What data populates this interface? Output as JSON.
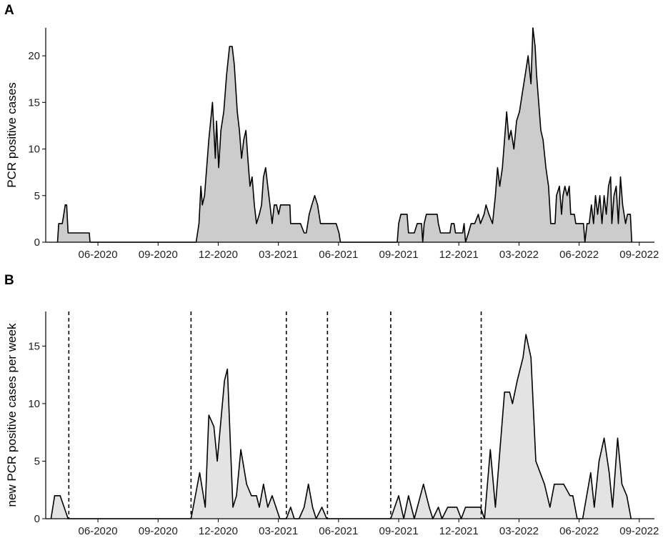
{
  "chart_data": [
    {
      "type": "area",
      "label": "A",
      "y_label": "PCR positive cases",
      "fill": "#cccccc",
      "color": "#000000",
      "xlim": [
        2020.2,
        2022.73
      ],
      "ylim": [
        0,
        23
      ],
      "yticks": [
        0,
        5,
        10,
        15,
        20
      ],
      "xticks": [
        {
          "value": 2020.417,
          "label": "06-2020"
        },
        {
          "value": 2020.667,
          "label": "09-2020"
        },
        {
          "value": 2020.917,
          "label": "12-2020"
        },
        {
          "value": 2021.167,
          "label": "03-2021"
        },
        {
          "value": 2021.417,
          "label": "06-2021"
        },
        {
          "value": 2021.667,
          "label": "09-2021"
        },
        {
          "value": 2021.917,
          "label": "12-2021"
        },
        {
          "value": 2022.167,
          "label": "03-2022"
        },
        {
          "value": 2022.417,
          "label": "06-2022"
        },
        {
          "value": 2022.667,
          "label": "09-2022"
        }
      ],
      "x": [
        2020.249,
        2020.254,
        2020.269,
        2020.275,
        2020.281,
        2020.287,
        2020.293,
        2020.381,
        2020.384,
        2020.825,
        2020.837,
        2020.845,
        2020.851,
        2020.86,
        2020.869,
        2020.878,
        2020.893,
        2020.899,
        2020.905,
        2020.91,
        2020.919,
        2020.928,
        2020.94,
        2020.952,
        2020.964,
        2020.975,
        2020.984,
        2020.996,
        2021.005,
        2021.014,
        2021.023,
        2021.032,
        2021.04,
        2021.049,
        2021.058,
        2021.067,
        2021.076,
        2021.088,
        2021.097,
        2021.105,
        2021.114,
        2021.123,
        2021.132,
        2021.141,
        2021.15,
        2021.159,
        2021.168,
        2021.176,
        2021.215,
        2021.218,
        2021.259,
        2021.274,
        2021.283,
        2021.295,
        2021.306,
        2021.318,
        2021.33,
        2021.342,
        2021.363,
        2021.407,
        2021.419,
        2021.425,
        2021.661,
        2021.667,
        2021.676,
        2021.702,
        2021.708,
        2021.732,
        2021.744,
        2021.762,
        2021.767,
        2021.773,
        2021.782,
        2021.827,
        2021.832,
        2021.841,
        2021.88,
        2021.886,
        2021.897,
        2021.903,
        2021.933,
        2021.939,
        2021.945,
        2021.957,
        2021.968,
        2021.983,
        2021.998,
        2022.007,
        2022.022,
        2022.03,
        2022.042,
        2022.057,
        2022.069,
        2022.078,
        2022.087,
        2022.098,
        2022.107,
        2022.116,
        2022.125,
        2022.134,
        2022.146,
        2022.157,
        2022.169,
        2022.181,
        2022.193,
        2022.205,
        2022.217,
        2022.225,
        2022.234,
        2022.24,
        2022.249,
        2022.258,
        2022.267,
        2022.279,
        2022.29,
        2022.299,
        2022.317,
        2022.323,
        2022.335,
        2022.344,
        2022.35,
        2022.358,
        2022.367,
        2022.376,
        2022.382,
        2022.397,
        2022.403,
        2022.435,
        2022.441,
        2022.45,
        2022.459,
        2022.468,
        2022.477,
        2022.485,
        2022.494,
        2022.503,
        2022.512,
        2022.521,
        2022.53,
        2022.539,
        2022.548,
        2022.553,
        2022.562,
        2022.571,
        2022.58,
        2022.589,
        2022.598,
        2022.61,
        2022.618,
        2022.63,
        2022.636
      ],
      "values": [
        0,
        2,
        2,
        3,
        4,
        4,
        1,
        1,
        0,
        0,
        2,
        6,
        4,
        5,
        8,
        11,
        15,
        12,
        9,
        13,
        8,
        12,
        14,
        18,
        21,
        21,
        19,
        14,
        12,
        9,
        11,
        12,
        9,
        6,
        7,
        4,
        2,
        3,
        4,
        7,
        8,
        6,
        4,
        2,
        4,
        4,
        3,
        4,
        4,
        2,
        2,
        1,
        1,
        3,
        4,
        5,
        4,
        2,
        2,
        2,
        1,
        0,
        0,
        2,
        3,
        3,
        1,
        1,
        2,
        2,
        0,
        2,
        3,
        3,
        2,
        1,
        1,
        2,
        2,
        1,
        1,
        2,
        0,
        1,
        2,
        2,
        3,
        2,
        3,
        4,
        3,
        2,
        5,
        8,
        6,
        8,
        11,
        14,
        11,
        12,
        10,
        13,
        14,
        16,
        18,
        20,
        17,
        23,
        21,
        18,
        15,
        12,
        11,
        8,
        6,
        2,
        2,
        5,
        6,
        3,
        5,
        6,
        5,
        6,
        3,
        3,
        2,
        2,
        0,
        2,
        2,
        4,
        2,
        5,
        3,
        5,
        2,
        5,
        3,
        6,
        7,
        2,
        5,
        6,
        2,
        7,
        4,
        2,
        3,
        3,
        0
      ]
    },
    {
      "type": "area",
      "label": "B",
      "y_label": "new PCR positive cases per week",
      "fill": "#e3e3e3",
      "color": "#000000",
      "xlim": [
        2020.2,
        2022.73
      ],
      "ylim": [
        0,
        18
      ],
      "yticks": [
        0,
        5,
        10,
        15
      ],
      "xticks": [
        {
          "value": 2020.417,
          "label": "06-2020"
        },
        {
          "value": 2020.667,
          "label": "09-2020"
        },
        {
          "value": 2020.917,
          "label": "12-2020"
        },
        {
          "value": 2021.167,
          "label": "03-2021"
        },
        {
          "value": 2021.417,
          "label": "06-2021"
        },
        {
          "value": 2021.667,
          "label": "09-2021"
        },
        {
          "value": 2021.917,
          "label": "12-2021"
        },
        {
          "value": 2022.167,
          "label": "03-2022"
        },
        {
          "value": 2022.417,
          "label": "06-2022"
        },
        {
          "value": 2022.667,
          "label": "09-2022"
        }
      ],
      "vlines": [
        2020.296,
        2020.804,
        2021.2,
        2021.371,
        2021.634,
        2022.01
      ],
      "x": [
        2020.222,
        2020.237,
        2020.26,
        2020.293,
        2020.804,
        2020.84,
        2020.863,
        2020.878,
        2020.899,
        2020.913,
        2020.943,
        2020.955,
        2020.978,
        2020.993,
        2021.011,
        2021.035,
        2021.055,
        2021.076,
        2021.088,
        2021.105,
        2021.123,
        2021.141,
        2021.173,
        2021.2,
        2021.218,
        2021.233,
        2021.253,
        2021.274,
        2021.292,
        2021.309,
        2021.324,
        2021.348,
        2021.368,
        2021.634,
        2021.667,
        2021.688,
        2021.708,
        2021.732,
        2021.77,
        2021.794,
        2021.809,
        2021.832,
        2021.847,
        2021.871,
        2021.909,
        2021.927,
        2021.945,
        2022.007,
        2022.024,
        2022.048,
        2022.069,
        2022.107,
        2022.128,
        2022.14,
        2022.16,
        2022.184,
        2022.196,
        2022.217,
        2022.237,
        2022.273,
        2022.296,
        2022.314,
        2022.353,
        2022.379,
        2022.391,
        2022.409,
        2022.432,
        2022.465,
        2022.48,
        2022.5,
        2022.521,
        2022.542,
        2022.556,
        2022.577,
        2022.595,
        2022.615,
        2022.633
      ],
      "values": [
        0,
        2,
        2,
        0,
        0,
        4,
        1,
        9,
        8,
        5,
        12,
        13,
        1,
        2,
        6,
        3,
        2,
        2,
        1,
        3,
        1,
        2,
        0,
        0,
        1,
        0,
        0,
        1,
        3,
        1,
        0,
        1,
        0,
        0,
        2,
        0,
        2,
        0,
        3,
        1,
        0,
        1,
        0,
        1,
        1,
        0,
        1,
        1,
        0,
        6,
        1,
        11,
        11,
        10,
        12,
        14,
        16,
        14,
        5,
        3,
        1,
        3,
        3,
        2,
        2,
        0,
        0,
        4,
        1,
        5,
        7,
        4,
        1,
        7,
        3,
        2,
        0
      ]
    }
  ]
}
